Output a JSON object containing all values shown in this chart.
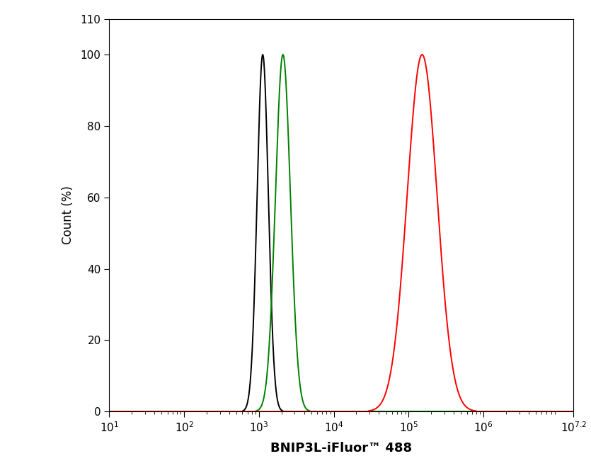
{
  "xlabel": "BNIP3L-iFluor™ 488",
  "ylabel": "Count (%)",
  "xmin": 1,
  "xmax": 7.2,
  "ymin": 0,
  "ymax": 110,
  "yticks": [
    0,
    20,
    40,
    60,
    80,
    100,
    110
  ],
  "xtick_positions": [
    1,
    2,
    3,
    4,
    5,
    6,
    7.2
  ],
  "black_peak_log": 3.05,
  "black_sigma_log": 0.075,
  "green_peak_log": 3.32,
  "green_sigma_log": 0.1,
  "red_peak_log": 5.18,
  "red_sigma_log": 0.2,
  "background_color": "#ffffff",
  "line_color_black": "#000000",
  "line_color_green": "#008000",
  "line_color_red": "#ff0000",
  "linewidth": 1.4
}
